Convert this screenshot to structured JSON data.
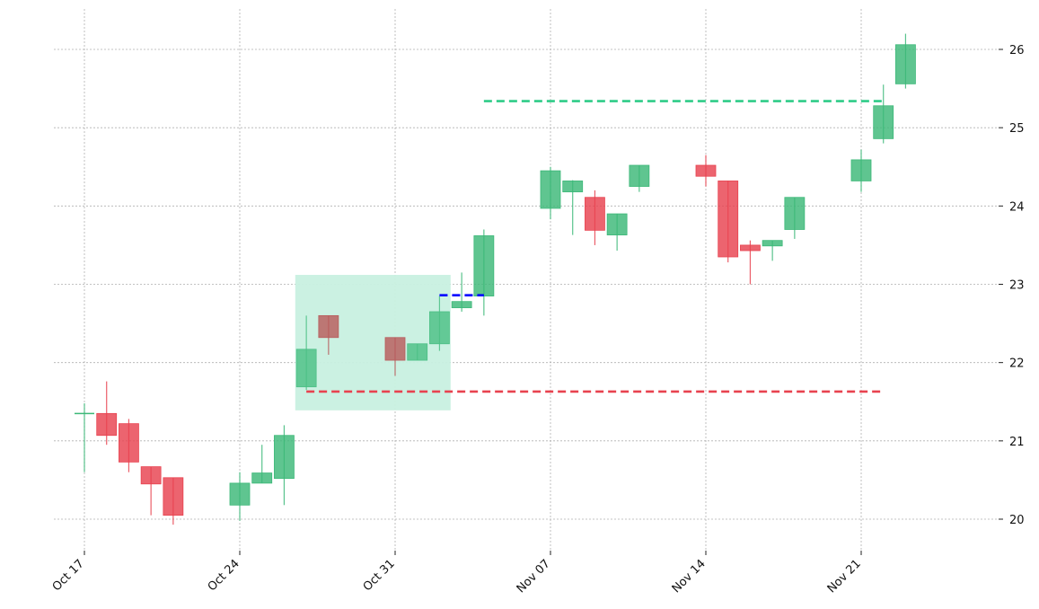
{
  "chart_data": {
    "type": "candlestick",
    "title": "",
    "xlabel": "",
    "ylabel": "",
    "ylim": [
      19.6,
      26.5
    ],
    "y_axis_side": "right",
    "y_ticks": [
      20,
      21,
      22,
      23,
      24,
      25,
      26
    ],
    "grid": true,
    "colors": {
      "up": "#3cb878",
      "down": "#e8424f",
      "pattern_up": "#4cbf85",
      "pattern_down": "#b85c5c",
      "pattern_box": "#c8f0e0",
      "resistance_line": "#0000ff",
      "target_line": "#2ecc87",
      "stop_line": "#e8424f"
    },
    "x_ticks": [
      {
        "date": "2022-10-17",
        "label": "Oct 17"
      },
      {
        "date": "2022-10-24",
        "label": "Oct 24"
      },
      {
        "date": "2022-10-31",
        "label": "Oct 31"
      },
      {
        "date": "2022-11-07",
        "label": "Nov 07"
      },
      {
        "date": "2022-11-14",
        "label": "Nov 14"
      },
      {
        "date": "2022-11-21",
        "label": "Nov 21"
      }
    ],
    "x_range": [
      "2022-10-15",
      "2022-11-25"
    ],
    "candles": [
      {
        "date": "2022-10-17",
        "open": 21.35,
        "high": 21.48,
        "low": 20.6,
        "close": 21.35
      },
      {
        "date": "2022-10-18",
        "open": 21.35,
        "high": 21.76,
        "low": 20.95,
        "close": 21.07
      },
      {
        "date": "2022-10-19",
        "open": 21.22,
        "high": 21.28,
        "low": 20.6,
        "close": 20.73
      },
      {
        "date": "2022-10-20",
        "open": 20.67,
        "high": 20.67,
        "low": 20.05,
        "close": 20.45
      },
      {
        "date": "2022-10-21",
        "open": 20.53,
        "high": 20.53,
        "low": 19.93,
        "close": 20.05
      },
      {
        "date": "2022-10-24",
        "open": 20.18,
        "high": 20.6,
        "low": 19.98,
        "close": 20.46
      },
      {
        "date": "2022-10-25",
        "open": 20.46,
        "high": 20.95,
        "low": 20.46,
        "close": 20.59
      },
      {
        "date": "2022-10-26",
        "open": 20.52,
        "high": 21.2,
        "low": 20.18,
        "close": 21.07
      },
      {
        "date": "2022-10-27",
        "open": 21.69,
        "high": 22.6,
        "low": 21.65,
        "close": 22.17,
        "pattern": true
      },
      {
        "date": "2022-10-28",
        "open": 22.6,
        "high": 22.6,
        "low": 22.1,
        "close": 22.32,
        "pattern": true
      },
      {
        "date": "2022-10-31",
        "open": 22.32,
        "high": 22.32,
        "low": 21.83,
        "close": 22.03,
        "pattern": true
      },
      {
        "date": "2022-11-01",
        "open": 22.03,
        "high": 22.24,
        "low": 22.03,
        "close": 22.24,
        "pattern": true
      },
      {
        "date": "2022-11-02",
        "open": 22.24,
        "high": 22.85,
        "low": 22.15,
        "close": 22.65,
        "pattern": true
      },
      {
        "date": "2022-11-03",
        "open": 22.7,
        "high": 23.15,
        "low": 22.65,
        "close": 22.78
      },
      {
        "date": "2022-11-04",
        "open": 22.85,
        "high": 23.7,
        "low": 22.6,
        "close": 23.62
      },
      {
        "date": "2022-11-07",
        "open": 23.97,
        "high": 24.5,
        "low": 23.83,
        "close": 24.45
      },
      {
        "date": "2022-11-08",
        "open": 24.18,
        "high": 24.33,
        "low": 23.63,
        "close": 24.32
      },
      {
        "date": "2022-11-09",
        "open": 24.11,
        "high": 24.2,
        "low": 23.5,
        "close": 23.69
      },
      {
        "date": "2022-11-10",
        "open": 23.63,
        "high": 23.9,
        "low": 23.43,
        "close": 23.9
      },
      {
        "date": "2022-11-11",
        "open": 24.25,
        "high": 24.52,
        "low": 24.18,
        "close": 24.52
      },
      {
        "date": "2022-11-14",
        "open": 24.52,
        "high": 24.65,
        "low": 24.25,
        "close": 24.38
      },
      {
        "date": "2022-11-15",
        "open": 24.32,
        "high": 24.32,
        "low": 23.28,
        "close": 23.35
      },
      {
        "date": "2022-11-16",
        "open": 23.5,
        "high": 23.56,
        "low": 23.0,
        "close": 23.43
      },
      {
        "date": "2022-11-17",
        "open": 23.49,
        "high": 23.56,
        "low": 23.3,
        "close": 23.56
      },
      {
        "date": "2022-11-18",
        "open": 23.7,
        "high": 24.11,
        "low": 23.58,
        "close": 24.11
      },
      {
        "date": "2022-11-21",
        "open": 24.32,
        "high": 24.72,
        "low": 24.18,
        "close": 24.59
      },
      {
        "date": "2022-11-22",
        "open": 24.86,
        "high": 25.55,
        "low": 24.8,
        "close": 25.28
      },
      {
        "date": "2022-11-23",
        "open": 25.56,
        "high": 26.2,
        "low": 25.5,
        "close": 26.06
      }
    ],
    "pattern_box": {
      "start": "2022-10-26.5",
      "end": "2022-11-02.5",
      "low": 21.39,
      "high": 23.12
    },
    "lines": [
      {
        "name": "resistance",
        "start": "2022-11-02",
        "end": "2022-11-04",
        "value": 22.86,
        "color": "#0000ff"
      },
      {
        "name": "target",
        "start": "2022-11-04",
        "end": "2022-11-22",
        "value": 25.34,
        "color": "#2ecc87"
      },
      {
        "name": "stop",
        "start": "2022-10-27",
        "end": "2022-11-22",
        "value": 21.63,
        "color": "#e8424f"
      }
    ]
  }
}
